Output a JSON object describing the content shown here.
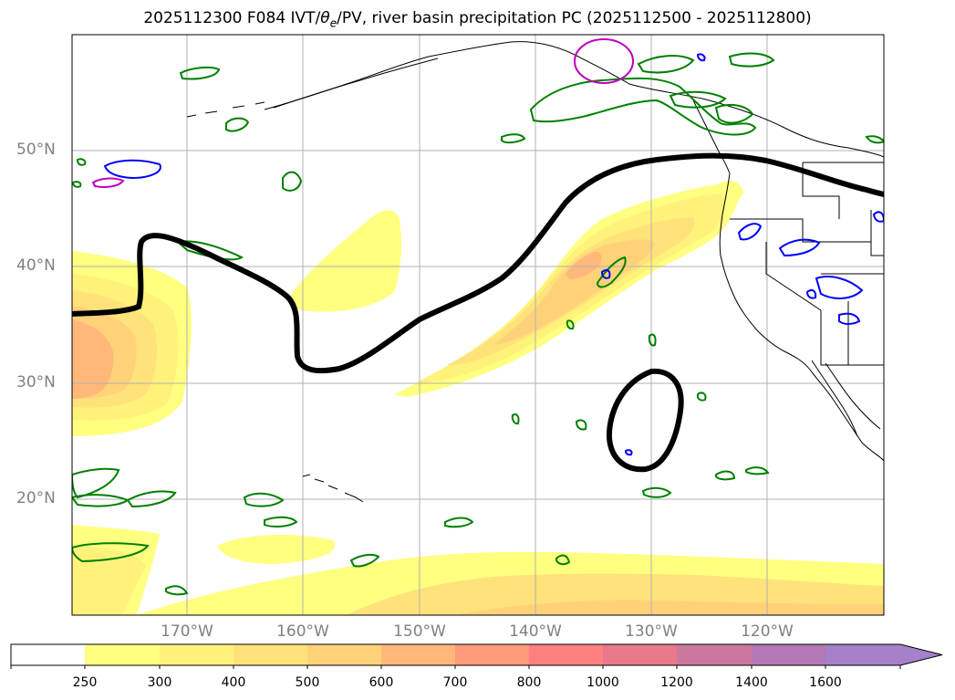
{
  "title": "2025112300 F084 IVT/θe/PV, river basin precipitation PC (2025112500 - 2025112800)",
  "title_parts": {
    "prefix": "2025112300 F084 IVT/",
    "theta": "θ",
    "theta_sub": "e",
    "suffix": "/PV, river basin precipitation PC (2025112500 - 2025112800)"
  },
  "latitude_labels": [
    "50°N",
    "40°N",
    "30°N",
    "20°N"
  ],
  "longitude_labels": [
    "170°W",
    "160°W",
    "150°W",
    "140°W",
    "130°W",
    "120°W"
  ],
  "colorbar": {
    "ticks": [
      "250",
      "300",
      "400",
      "500",
      "600",
      "700",
      "800",
      "1000",
      "1200",
      "1400",
      "1600"
    ],
    "colors": [
      "#ffffff",
      "#ffff80",
      "#fff27a",
      "#ffe27a",
      "#ffd27a",
      "#ffb87a",
      "#ff9a7a",
      "#ff8080",
      "#e8788a",
      "#cc789e",
      "#b478b4",
      "#a680c8"
    ],
    "extend": "max"
  },
  "colors": {
    "pv_contour": "#000000",
    "precip_green": "#008000",
    "precip_blue": "#0000ff",
    "precip_magenta": "#bf00bf",
    "coastline": "#000000",
    "grid": "#b0b0b0",
    "tick_label": "#808080"
  }
}
